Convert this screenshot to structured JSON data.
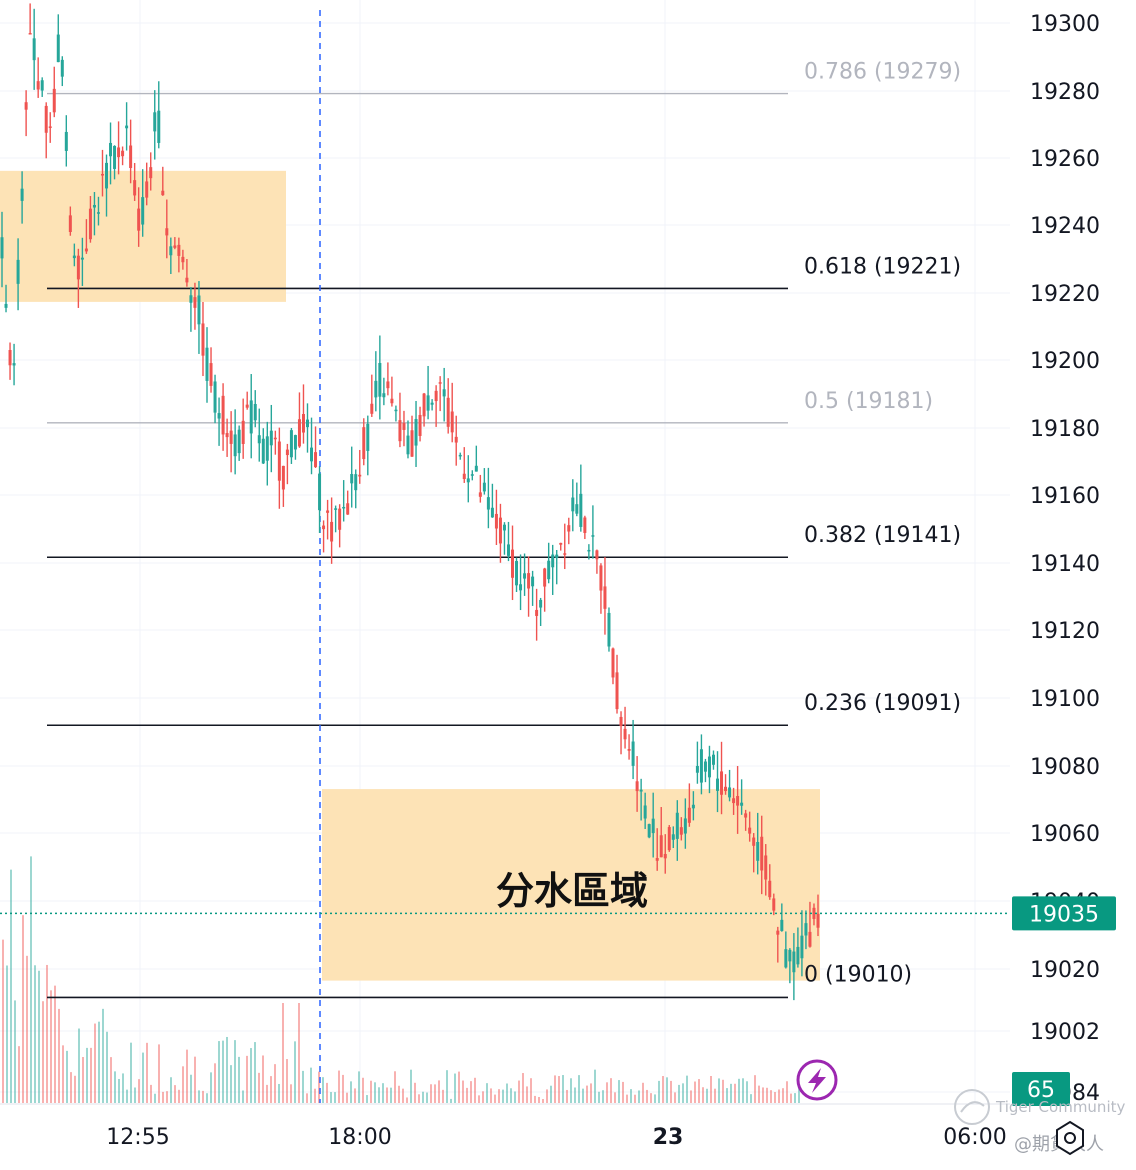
{
  "chart_data": {
    "type": "candlestick",
    "y_axis": {
      "ticks": [
        "19300",
        "19280",
        "19260",
        "19240",
        "19220",
        "19200",
        "19180",
        "19160",
        "19140",
        "19120",
        "19100",
        "19080",
        "19060",
        "19040",
        "19020",
        "19002",
        "18984"
      ],
      "range": [
        18981,
        19307
      ]
    },
    "x_axis": {
      "ticks": [
        "12:55",
        "18:00",
        "23",
        "06:00"
      ]
    },
    "session_marker": "18:00",
    "fib_levels": [
      {
        "level": "0.786",
        "price": 19279,
        "label": "0.786 (19279)",
        "color": "#b2b5be"
      },
      {
        "level": "0.618",
        "price": 19221,
        "label": "0.618 (19221)",
        "color": "#131722"
      },
      {
        "level": "0.5",
        "price": 19181,
        "label": "0.5 (19181)",
        "color": "#b2b5be"
      },
      {
        "level": "0.382",
        "price": 19141,
        "label": "0.382 (19141)",
        "color": "#131722"
      },
      {
        "level": "0.236",
        "price": 19091,
        "label": "0.236 (19091)",
        "color": "#131722"
      },
      {
        "level": "0",
        "price": 19010,
        "label": "0 (19010)",
        "color": "#131722"
      }
    ],
    "zones": [
      {
        "name": "",
        "price_low": 19217,
        "price_high": 19256,
        "time_start": "",
        "time_end": ""
      },
      {
        "name": "分水區域",
        "price_low": 19015,
        "price_high": 19072,
        "time_start": "",
        "time_end": ""
      }
    ],
    "last_price": {
      "value": 19035,
      "label": "19035"
    },
    "volume_badge": {
      "label": "65"
    },
    "price_path": [
      19235,
      19190,
      19245,
      19300,
      19280,
      19265,
      19300,
      19240,
      19228,
      19240,
      19248,
      19258,
      19262,
      19268,
      19240,
      19250,
      19275,
      19238,
      19232,
      19226,
      19218,
      19200,
      19188,
      19182,
      19176,
      19180,
      19184,
      19172,
      19174,
      19166,
      19176,
      19182,
      19171,
      19156,
      19148,
      19154,
      19162,
      19172,
      19182,
      19196,
      19186,
      19178,
      19172,
      19182,
      19190,
      19194,
      19182,
      19172,
      19168,
      19162,
      19156,
      19150,
      19144,
      19138,
      19132,
      19128,
      19134,
      19144,
      19148,
      19160,
      19152,
      19140,
      19132,
      19108,
      19088,
      19084,
      19066,
      19060,
      19052,
      19058,
      19062,
      19066,
      19078,
      19080,
      19074,
      19072,
      19068,
      19060,
      19054,
      19044,
      19030,
      19020,
      19024,
      19030,
      19035
    ],
    "colors": {
      "up": "#26a69a",
      "down": "#ef5350",
      "zone": "#fde3b6",
      "accent": "#089981",
      "purple": "#9c27b0"
    }
  },
  "watermark": {
    "brand": "Tiger Community",
    "handle": "@期貨浪人"
  }
}
